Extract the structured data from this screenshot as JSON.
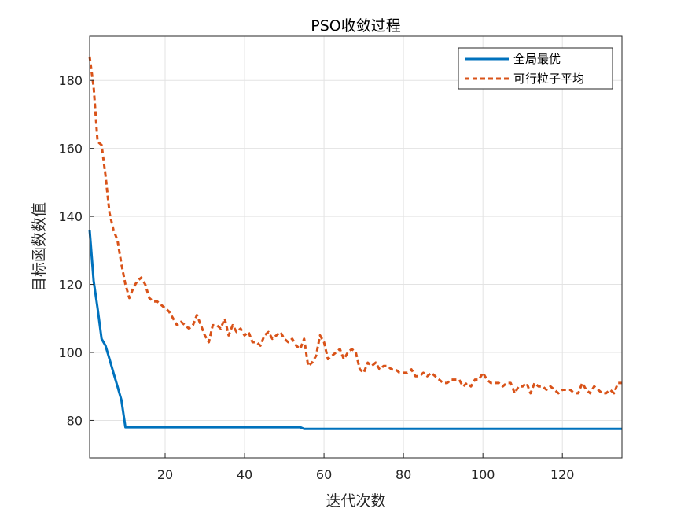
{
  "chart_data": {
    "type": "line",
    "title": "PSO收敛过程",
    "xlabel": "迭代次数",
    "ylabel": "目标函数数值",
    "xlim": [
      1,
      135
    ],
    "ylim": [
      69,
      193
    ],
    "xticks": [
      20,
      40,
      60,
      80,
      100,
      120
    ],
    "yticks": [
      80,
      100,
      120,
      140,
      160,
      180
    ],
    "grid": true,
    "legend_position": "top-right",
    "series": [
      {
        "name": "全局最优",
        "color": "#0072BD",
        "line_style": "solid",
        "points": [
          [
            1,
            136
          ],
          [
            2,
            121
          ],
          [
            3,
            113
          ],
          [
            4,
            104
          ],
          [
            5,
            102
          ],
          [
            6,
            98
          ],
          [
            7,
            94
          ],
          [
            8,
            90
          ],
          [
            9,
            86
          ],
          [
            10,
            78
          ],
          [
            20,
            78
          ],
          [
            40,
            78
          ],
          [
            54,
            78
          ],
          [
            55,
            77.5
          ],
          [
            80,
            77.5
          ],
          [
            100,
            77.5
          ],
          [
            120,
            77.5
          ],
          [
            135,
            77.5
          ]
        ]
      },
      {
        "name": "可行粒子平均",
        "color": "#D95319",
        "line_style": "dashed",
        "points": [
          [
            1,
            187
          ],
          [
            2,
            178
          ],
          [
            3,
            162
          ],
          [
            4,
            161
          ],
          [
            5,
            152
          ],
          [
            6,
            141
          ],
          [
            7,
            136
          ],
          [
            8,
            133
          ],
          [
            9,
            126
          ],
          [
            10,
            120
          ],
          [
            11,
            116
          ],
          [
            12,
            119
          ],
          [
            13,
            121
          ],
          [
            14,
            122
          ],
          [
            15,
            120
          ],
          [
            16,
            116
          ],
          [
            17,
            115
          ],
          [
            18,
            115
          ],
          [
            19,
            114
          ],
          [
            20,
            113
          ],
          [
            21,
            112
          ],
          [
            22,
            110
          ],
          [
            23,
            108
          ],
          [
            24,
            109
          ],
          [
            25,
            108
          ],
          [
            26,
            107
          ],
          [
            27,
            108
          ],
          [
            28,
            111
          ],
          [
            29,
            108
          ],
          [
            30,
            105
          ],
          [
            31,
            103
          ],
          [
            32,
            108
          ],
          [
            33,
            108
          ],
          [
            34,
            107
          ],
          [
            35,
            110
          ],
          [
            36,
            105
          ],
          [
            37,
            108
          ],
          [
            38,
            106
          ],
          [
            39,
            107
          ],
          [
            40,
            105
          ],
          [
            41,
            106
          ],
          [
            42,
            103
          ],
          [
            43,
            103
          ],
          [
            44,
            102
          ],
          [
            45,
            105
          ],
          [
            46,
            106
          ],
          [
            47,
            104
          ],
          [
            48,
            105
          ],
          [
            49,
            106
          ],
          [
            50,
            104
          ],
          [
            51,
            103
          ],
          [
            52,
            104
          ],
          [
            53,
            102
          ],
          [
            54,
            101
          ],
          [
            55,
            104
          ],
          [
            56,
            96
          ],
          [
            57,
            97
          ],
          [
            58,
            99
          ],
          [
            59,
            105
          ],
          [
            60,
            103
          ],
          [
            61,
            98
          ],
          [
            62,
            99
          ],
          [
            63,
            100
          ],
          [
            64,
            101
          ],
          [
            65,
            98
          ],
          [
            66,
            100
          ],
          [
            67,
            101
          ],
          [
            68,
            100
          ],
          [
            69,
            95
          ],
          [
            70,
            94
          ],
          [
            71,
            97
          ],
          [
            72,
            96
          ],
          [
            73,
            97
          ],
          [
            74,
            95
          ],
          [
            75,
            96
          ],
          [
            76,
            96
          ],
          [
            77,
            95
          ],
          [
            78,
            95
          ],
          [
            79,
            94
          ],
          [
            80,
            94
          ],
          [
            81,
            94
          ],
          [
            82,
            95
          ],
          [
            83,
            93
          ],
          [
            84,
            93
          ],
          [
            85,
            94
          ],
          [
            86,
            93
          ],
          [
            87,
            94
          ],
          [
            88,
            93
          ],
          [
            89,
            92
          ],
          [
            90,
            91
          ],
          [
            91,
            91
          ],
          [
            92,
            92
          ],
          [
            93,
            92
          ],
          [
            94,
            92
          ],
          [
            95,
            90
          ],
          [
            96,
            91
          ],
          [
            97,
            90
          ],
          [
            98,
            92
          ],
          [
            99,
            92
          ],
          [
            100,
            94
          ],
          [
            101,
            92
          ],
          [
            102,
            91
          ],
          [
            103,
            91
          ],
          [
            104,
            91
          ],
          [
            105,
            90
          ],
          [
            106,
            91
          ],
          [
            107,
            91
          ],
          [
            108,
            88
          ],
          [
            109,
            90
          ],
          [
            110,
            90
          ],
          [
            111,
            91
          ],
          [
            112,
            88
          ],
          [
            113,
            91
          ],
          [
            114,
            90
          ],
          [
            115,
            90
          ],
          [
            116,
            89
          ],
          [
            117,
            90
          ],
          [
            118,
            89
          ],
          [
            119,
            88
          ],
          [
            120,
            89
          ],
          [
            121,
            89
          ],
          [
            122,
            89
          ],
          [
            123,
            88
          ],
          [
            124,
            88
          ],
          [
            125,
            91
          ],
          [
            126,
            89
          ],
          [
            127,
            88
          ],
          [
            128,
            90
          ],
          [
            129,
            89
          ],
          [
            130,
            88
          ],
          [
            131,
            88
          ],
          [
            132,
            89
          ],
          [
            133,
            88
          ],
          [
            134,
            91
          ],
          [
            135,
            91
          ]
        ]
      }
    ]
  }
}
